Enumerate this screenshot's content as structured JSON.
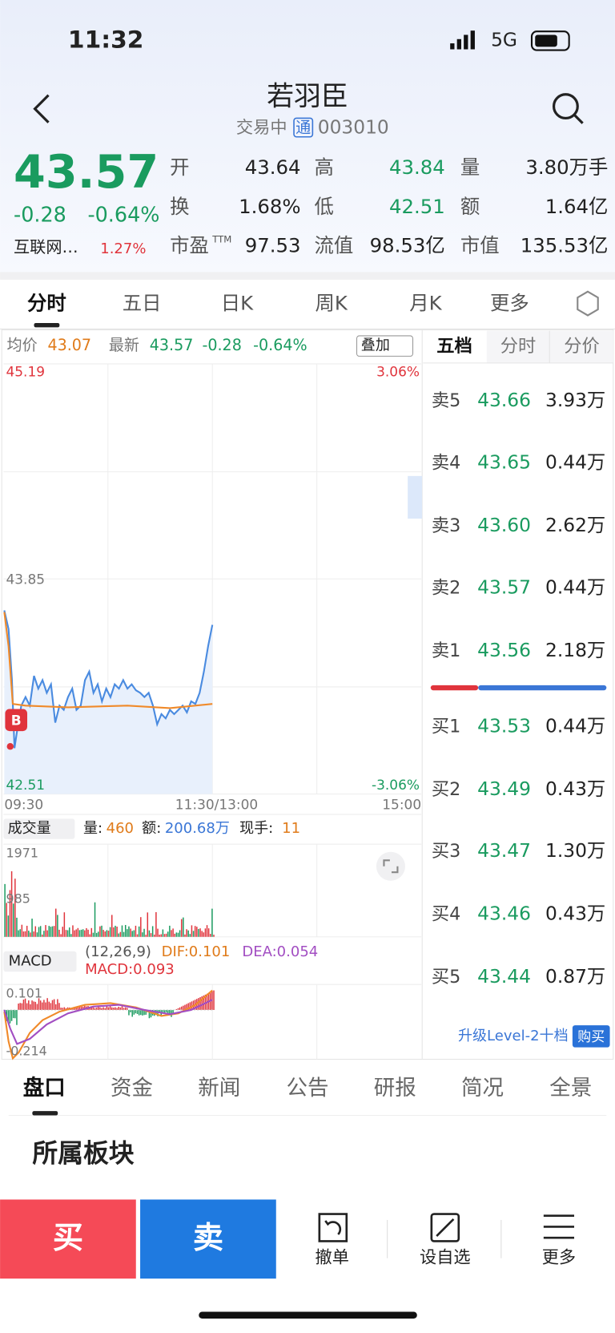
{
  "status_bar": {
    "time": "11:32",
    "network": "5G"
  },
  "header": {
    "title": "若羽臣",
    "status": "交易中",
    "badge": "通",
    "code": "003010"
  },
  "quote": {
    "price": "43.57",
    "change": "-0.28",
    "change_pct": "-0.64%",
    "sector": "互联网…",
    "sector_pct": "1.27%",
    "stats": [
      [
        {
          "label": "开",
          "value": "43.64"
        },
        {
          "label": "高",
          "value": "43.84"
        },
        {
          "label": "量",
          "value": "3.80万手"
        }
      ],
      [
        {
          "label": "换",
          "value": "1.68%"
        },
        {
          "label": "低",
          "value": "42.51"
        },
        {
          "label": "额",
          "value": "1.64亿"
        }
      ],
      [
        {
          "label": "市盈",
          "sup": "TTM",
          "value": "97.53"
        },
        {
          "label": "流值",
          "value": "98.53亿"
        },
        {
          "label": "市值",
          "value": "135.53亿"
        }
      ]
    ]
  },
  "chart_tabs": [
    "分时",
    "五日",
    "日K",
    "周K",
    "月K",
    "更多"
  ],
  "intraday": {
    "avg_label": "均价",
    "avg": "43.07",
    "latest_label": "最新",
    "latest": "43.57",
    "change": "-0.28",
    "change_pct": "-0.64%",
    "overlay": "叠加",
    "price_high": "45.19",
    "pct_high": "3.06%",
    "price_mid": "43.85",
    "price_low": "42.51",
    "pct_low": "-3.06%",
    "times": [
      "09:30",
      "11:30/13:00",
      "15:00"
    ],
    "marker": "B"
  },
  "volume": {
    "selector": "成交量",
    "vol_label": "量:",
    "vol": "460",
    "amt_label": "额:",
    "amt": "200.68万",
    "hand_label": "现手:",
    "hand": "11",
    "max": "1971",
    "mid": "985"
  },
  "macd": {
    "selector": "MACD",
    "params": "(12,26,9)",
    "dif": "DIF:0.101",
    "dea": "DEA:0.054",
    "macd": "MACD:0.093",
    "max": "0.101",
    "min": "-0.214"
  },
  "order_book": {
    "tabs": [
      "五档",
      "分时",
      "分价"
    ],
    "asks": [
      {
        "label": "卖5",
        "price": "43.66",
        "volume": "3.93万"
      },
      {
        "label": "卖4",
        "price": "43.65",
        "volume": "0.44万"
      },
      {
        "label": "卖3",
        "price": "43.60",
        "volume": "2.62万"
      },
      {
        "label": "卖2",
        "price": "43.57",
        "volume": "0.44万"
      },
      {
        "label": "卖1",
        "price": "43.56",
        "volume": "2.18万"
      }
    ],
    "bids": [
      {
        "label": "买1",
        "price": "43.53",
        "volume": "0.44万"
      },
      {
        "label": "买2",
        "price": "43.49",
        "volume": "0.43万"
      },
      {
        "label": "买3",
        "price": "43.47",
        "volume": "1.30万"
      },
      {
        "label": "买4",
        "price": "43.46",
        "volume": "0.43万"
      },
      {
        "label": "买5",
        "price": "43.44",
        "volume": "0.87万"
      }
    ],
    "upgrade": "升级Level-2十档",
    "buy": "购买"
  },
  "info_tabs": [
    "盘口",
    "资金",
    "新闻",
    "公告",
    "研报",
    "简况",
    "全景"
  ],
  "section_title": "所属板块",
  "actions": {
    "buy": "买",
    "sell": "卖",
    "cancel": "撤单",
    "watch": "设自选",
    "more": "更多"
  }
}
